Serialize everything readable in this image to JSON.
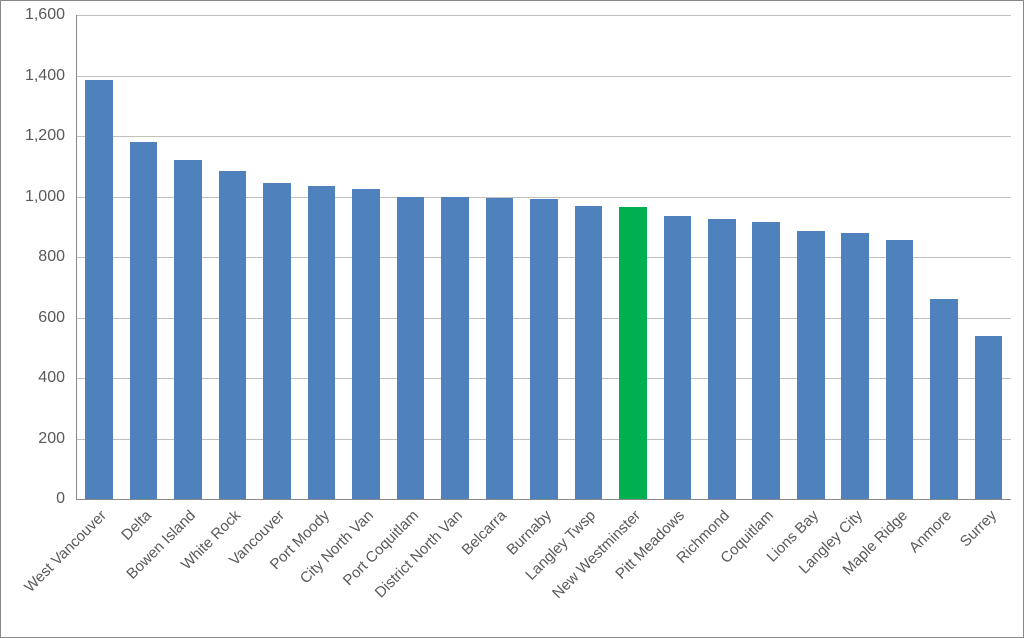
{
  "chart": {
    "type": "bar",
    "ylim": [
      0,
      1600
    ],
    "ytick_step": 200,
    "yticks": [
      0,
      200,
      400,
      600,
      800,
      1000,
      1200,
      1400,
      1600
    ],
    "ytick_labels": [
      "0",
      "200",
      "400",
      "600",
      "800",
      "1,000",
      "1,200",
      "1,400",
      "1,600"
    ],
    "grid_color": "#bfbfbf",
    "axis_color": "#888888",
    "background_color": "#ffffff",
    "default_bar_color": "#4f81bd",
    "highlight_bar_color": "#00b050",
    "tick_font_size_pt": 16,
    "xlabel_font_size_pt": 15,
    "font_color": "#595959",
    "bar_width_ratio": 0.62,
    "x_label_rotation_deg": -45,
    "categories": [
      "West Vancouver",
      "Delta",
      "Bowen Island",
      "White Rock",
      "Vancouver",
      "Port Moody",
      "City North Van",
      "Port Coquitlam",
      "District North Van",
      "Belcarra",
      "Burnaby",
      "Langley Twsp",
      "New Westminster",
      "Pitt Meadows",
      "Richmond",
      "Coquitlam",
      "Lions Bay",
      "Langley City",
      "Maple Ridge",
      "Anmore",
      "Surrey"
    ],
    "values": [
      1385,
      1180,
      1120,
      1085,
      1045,
      1035,
      1025,
      1000,
      998,
      996,
      992,
      970,
      965,
      935,
      925,
      915,
      885,
      880,
      855,
      660,
      540
    ],
    "highlight_index": 12
  }
}
